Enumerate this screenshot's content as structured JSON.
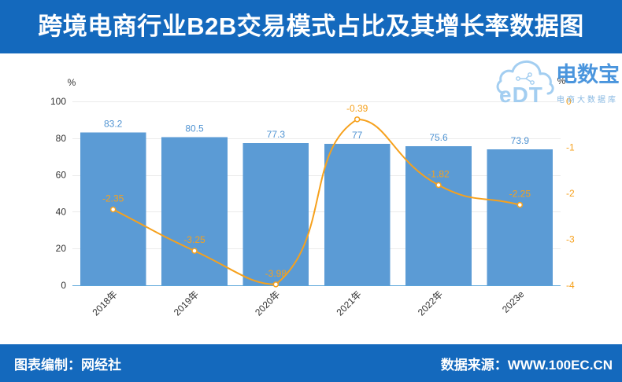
{
  "chart_data": {
    "type": "bar",
    "title": "跨境电商行业B2B交易模式占比及其增长率数据图",
    "categories": [
      "2018年",
      "2019年",
      "2020年",
      "2021年",
      "2022年",
      "2023e"
    ],
    "series": [
      {
        "type": "bar",
        "axis": "left",
        "values": [
          83.2,
          80.5,
          77.3,
          77,
          75.6,
          73.9
        ],
        "color": "#5b9bd5",
        "label_color": "#4f93d2"
      },
      {
        "type": "line",
        "axis": "right",
        "smooth": true,
        "values": [
          -2.35,
          -3.25,
          -3.98,
          -0.39,
          -1.82,
          -2.25
        ],
        "color": "#f6a11d"
      }
    ],
    "ylabel": "%",
    "ylim": [
      0,
      100
    ],
    "yticks": [
      0,
      20,
      40,
      60,
      80,
      100
    ],
    "y2label": "%",
    "y2lim": [
      -4,
      0
    ],
    "y2ticks": [
      0,
      -1,
      -2,
      -3,
      -4
    ],
    "grid": true
  },
  "brand": {
    "logo_mark": "eDT",
    "logo_name": "电数宝",
    "logo_tagline": "电商大数据库"
  },
  "footer": {
    "compiler": "图表编制：网经社",
    "source": "数据来源：WWW.100EC.CN"
  },
  "colors": {
    "banner": "#1469bd",
    "axis_line": "#5aa5da",
    "gridline": "#ebebeb",
    "tick_text": "#333333",
    "logo_text": "#3d8edb",
    "logo_tagline": "#7fb3e0",
    "logo_cloud": "#9dcbf0"
  }
}
